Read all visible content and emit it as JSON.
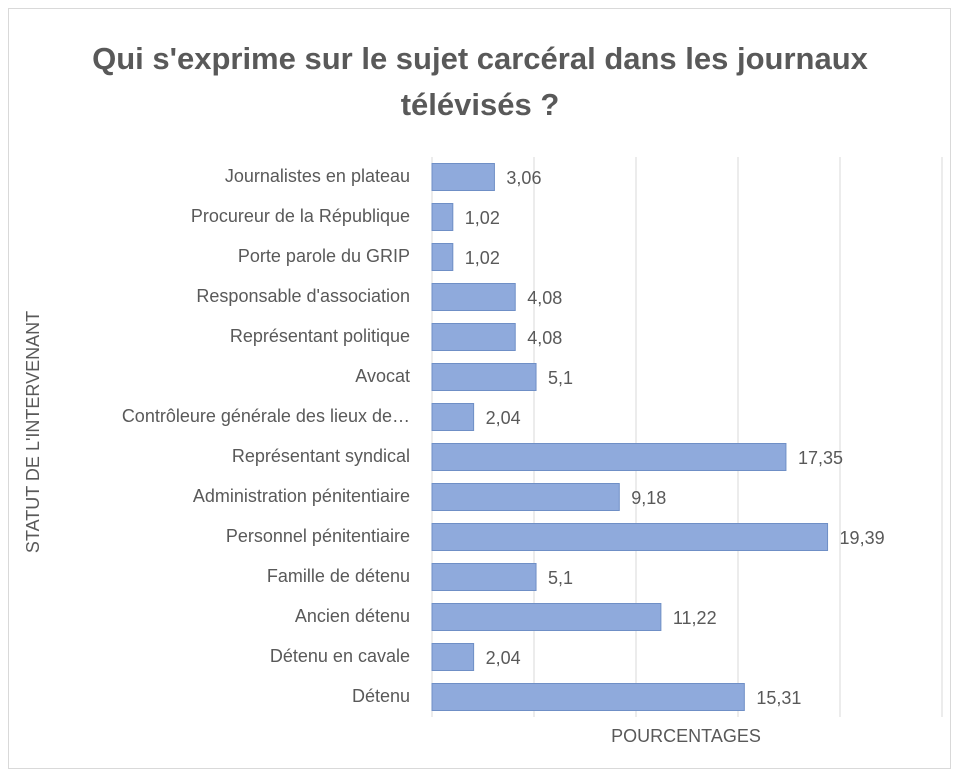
{
  "chart_data": {
    "type": "bar",
    "orientation": "horizontal",
    "title": "Qui s'exprime sur le sujet carcéral dans les journaux télévisés ?",
    "xlabel": "POURCENTAGES",
    "ylabel": "STATUT DE L'INTERVENANT",
    "categories": [
      "Journalistes en plateau",
      "Procureur de la République",
      "Porte parole du GRIP",
      "Responsable d'association",
      "Représentant politique",
      "Avocat",
      "Contrôleure générale des lieux de…",
      "Représentant syndical",
      "Administration pénitentiaire",
      "Personnel pénitentiaire",
      "Famille de détenu",
      "Ancien détenu",
      "Détenu en cavale",
      "Détenu"
    ],
    "values": [
      3.06,
      1.02,
      1.02,
      4.08,
      4.08,
      5.1,
      2.04,
      17.35,
      9.18,
      19.39,
      5.1,
      11.22,
      2.04,
      15.31
    ],
    "value_labels": [
      "3,06",
      "1,02",
      "1,02",
      "4,08",
      "4,08",
      "5,1",
      "2,04",
      "17,35",
      "9,18",
      "19,39",
      "5,1",
      "11,22",
      "2,04",
      "15,31"
    ],
    "color": "#8faadc",
    "xlim": [
      0,
      25
    ],
    "xticks": [
      0,
      5,
      10,
      15,
      20,
      25
    ],
    "grid": true
  }
}
